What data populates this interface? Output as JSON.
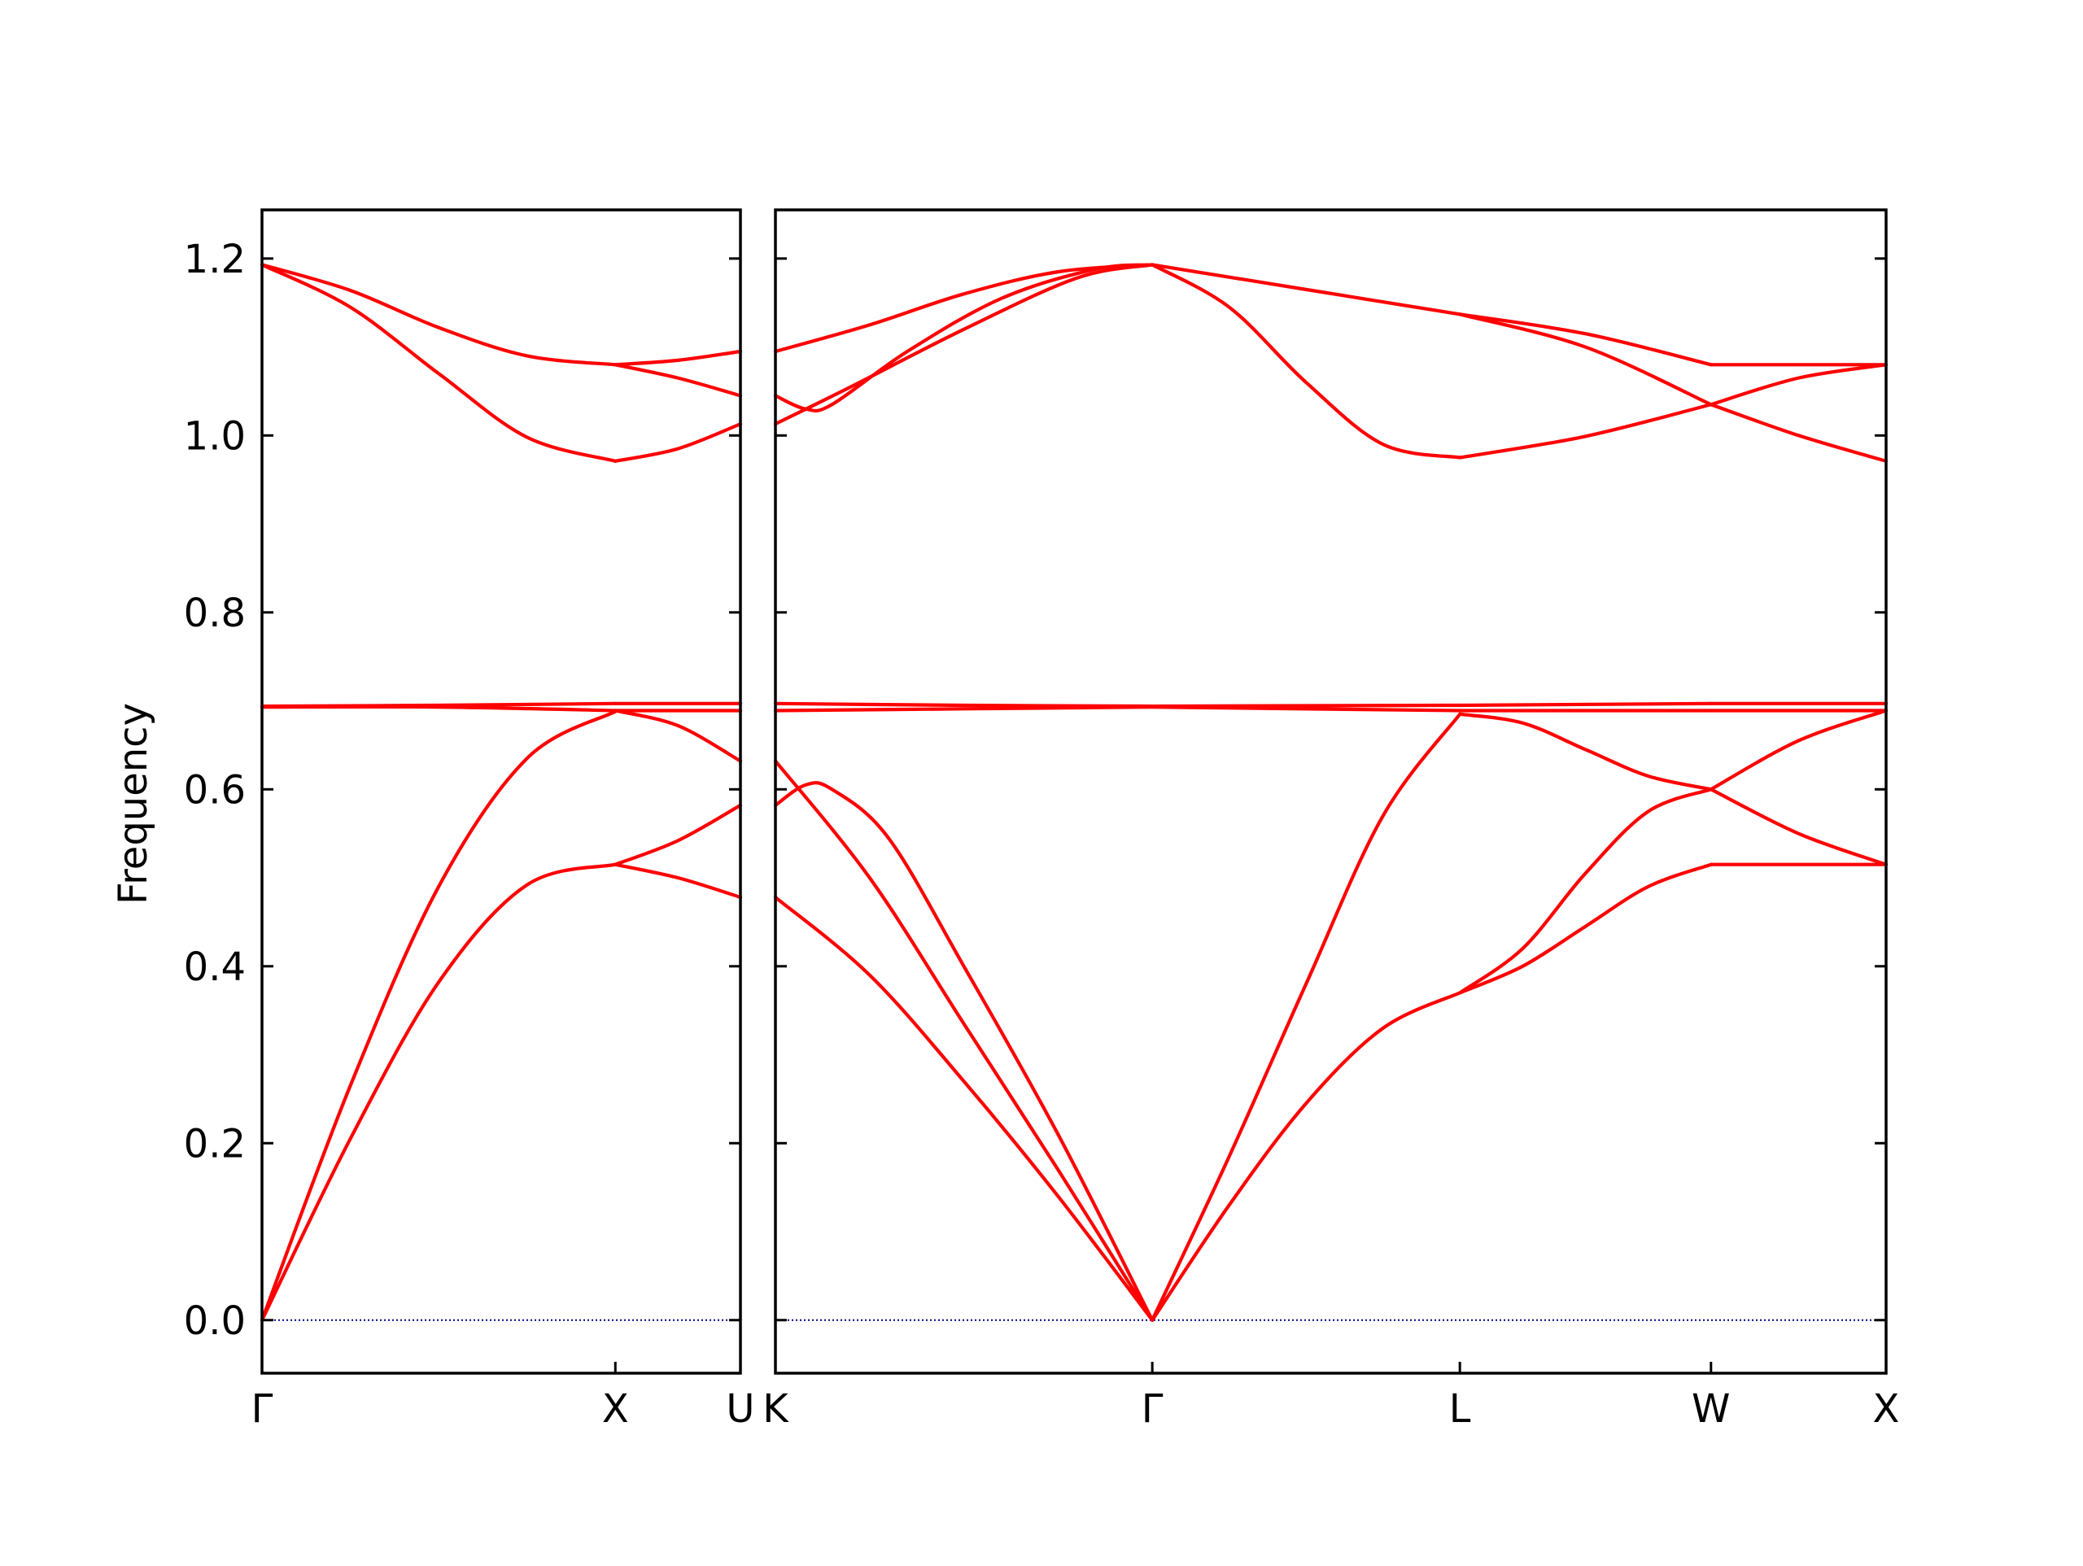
{
  "chart_data": {
    "type": "line",
    "ylabel": "Frequency",
    "xlabel": "",
    "ylim": [
      -0.06,
      1.255
    ],
    "y_ticks": [
      0.0,
      0.2,
      0.4,
      0.6,
      0.8,
      1.0,
      1.2
    ],
    "y_tick_labels": [
      "0.0",
      "0.2",
      "0.4",
      "0.6",
      "0.8",
      "1.0",
      "1.2"
    ],
    "line_color": "#ff0000",
    "zero_line_color": "#00008b",
    "grid": false,
    "panels": [
      {
        "x_range": [
          0,
          1.354
        ],
        "ticks": [
          {
            "x": 0,
            "label": "Γ"
          },
          {
            "x": 1.0,
            "label": "X"
          },
          {
            "x": 1.354,
            "label": "U"
          }
        ],
        "segments": [
          {
            "x_start": 0,
            "x_end": 1.0,
            "bands": [
              [
                [
                  0,
                  0
                ],
                [
                  0.25,
                  0.205
                ],
                [
                  0.5,
                  0.382
                ],
                [
                  0.75,
                  0.492
                ],
                [
                  1.0,
                  0.515
                ]
              ],
              [
                [
                  0,
                  0
                ],
                [
                  0.25,
                  0.265
                ],
                [
                  0.5,
                  0.49
                ],
                [
                  0.75,
                  0.635
                ],
                [
                  1.0,
                  0.688
                ]
              ],
              [
                [
                  0,
                  0.693
                ],
                [
                  0.5,
                  0.693
                ],
                [
                  1.0,
                  0.689
                ]
              ],
              [
                [
                  0,
                  0.694
                ],
                [
                  0.5,
                  0.695
                ],
                [
                  1.0,
                  0.697
                ]
              ],
              [
                [
                  0,
                  1.193
                ],
                [
                  0.25,
                  1.145
                ],
                [
                  0.5,
                  1.07
                ],
                [
                  0.75,
                  0.998
                ],
                [
                  1.0,
                  0.971
                ]
              ],
              [
                [
                  0,
                  1.193
                ],
                [
                  0.25,
                  1.164
                ],
                [
                  0.5,
                  1.122
                ],
                [
                  0.75,
                  1.09
                ],
                [
                  1.0,
                  1.08
                ]
              ]
            ]
          },
          {
            "x_start": 1.0,
            "x_end": 1.354,
            "bands": [
              [
                [
                  0,
                  0.515
                ],
                [
                  0.5,
                  0.5
                ],
                [
                  1.0,
                  0.478
                ]
              ],
              [
                [
                  0,
                  0.515
                ],
                [
                  0.5,
                  0.542
                ],
                [
                  1.0,
                  0.582
                ]
              ],
              [
                [
                  0,
                  0.689
                ],
                [
                  0.5,
                  0.672
                ],
                [
                  1.0,
                  0.632
                ]
              ],
              [
                [
                  0,
                  0.689
                ],
                [
                  1.0,
                  0.689
                ]
              ],
              [
                [
                  0,
                  0.697
                ],
                [
                  1.0,
                  0.697
                ]
              ],
              [
                [
                  0,
                  0.971
                ],
                [
                  0.5,
                  0.985
                ],
                [
                  1.0,
                  1.013
                ]
              ],
              [
                [
                  0,
                  1.08
                ],
                [
                  0.5,
                  1.065
                ],
                [
                  1.0,
                  1.045
                ]
              ],
              [
                [
                  0,
                  1.08
                ],
                [
                  0.5,
                  1.085
                ],
                [
                  1.0,
                  1.095
                ]
              ]
            ]
          }
        ]
      },
      {
        "x_range": [
          0,
          3.127
        ],
        "ticks": [
          {
            "x": 0,
            "label": "K"
          },
          {
            "x": 1.061,
            "label": "Γ"
          },
          {
            "x": 1.927,
            "label": "L"
          },
          {
            "x": 2.634,
            "label": "W"
          },
          {
            "x": 3.127,
            "label": "X"
          }
        ],
        "segments": [
          {
            "x_start": 0,
            "x_end": 1.061,
            "bands": [
              [
                [
                  0,
                  0.478
                ],
                [
                  0.25,
                  0.39
                ],
                [
                  0.5,
                  0.27
                ],
                [
                  0.75,
                  0.14
                ],
                [
                  1.0,
                  0
                ]
              ],
              [
                [
                  0,
                  0.632
                ],
                [
                  0.25,
                  0.5
                ],
                [
                  0.5,
                  0.335
                ],
                [
                  0.75,
                  0.17
                ],
                [
                  1.0,
                  0
                ]
              ],
              [
                [
                  0,
                  0.582
                ],
                [
                  0.08,
                  0.605
                ],
                [
                  0.15,
                  0.6
                ],
                [
                  0.3,
                  0.545
                ],
                [
                  0.5,
                  0.4
                ],
                [
                  0.75,
                  0.21
                ],
                [
                  1.0,
                  0
                ]
              ],
              [
                [
                  0,
                  0.689
                ],
                [
                  0.5,
                  0.691
                ],
                [
                  1.0,
                  0.693
                ]
              ],
              [
                [
                  0,
                  0.697
                ],
                [
                  0.5,
                  0.695
                ],
                [
                  1.0,
                  0.694
                ]
              ],
              [
                [
                  0,
                  1.013
                ],
                [
                  0.2,
                  1.055
                ],
                [
                  0.5,
                  1.12
                ],
                [
                  0.8,
                  1.178
                ],
                [
                  1.0,
                  1.193
                ]
              ],
              [
                [
                  0,
                  1.045
                ],
                [
                  0.08,
                  1.03
                ],
                [
                  0.15,
                  1.035
                ],
                [
                  0.35,
                  1.095
                ],
                [
                  0.6,
                  1.155
                ],
                [
                  0.85,
                  1.188
                ],
                [
                  1.0,
                  1.193
                ]
              ],
              [
                [
                  0,
                  1.095
                ],
                [
                  0.25,
                  1.125
                ],
                [
                  0.5,
                  1.16
                ],
                [
                  0.75,
                  1.185
                ],
                [
                  1.0,
                  1.193
                ]
              ]
            ]
          },
          {
            "x_start": 1.061,
            "x_end": 1.927,
            "bands": [
              [
                [
                  0,
                  0
                ],
                [
                  0.25,
                  0.13
                ],
                [
                  0.5,
                  0.245
                ],
                [
                  0.75,
                  0.33
                ],
                [
                  1.0,
                  0.37
                ]
              ],
              [
                [
                  0,
                  0
                ],
                [
                  0.25,
                  0.185
                ],
                [
                  0.5,
                  0.38
                ],
                [
                  0.75,
                  0.57
                ],
                [
                  1.0,
                  0.685
                ]
              ],
              [
                [
                  0,
                  0.693
                ],
                [
                  1.0,
                  0.689
                ]
              ],
              [
                [
                  0,
                  0.694
                ],
                [
                  1.0,
                  0.695
                ]
              ],
              [
                [
                  0,
                  1.193
                ],
                [
                  0.25,
                  1.145
                ],
                [
                  0.5,
                  1.06
                ],
                [
                  0.75,
                  0.99
                ],
                [
                  1.0,
                  0.975
                ]
              ],
              [
                [
                  0,
                  1.193
                ],
                [
                  0.5,
                  1.165
                ],
                [
                  1.0,
                  1.137
                ]
              ]
            ]
          },
          {
            "x_start": 1.927,
            "x_end": 2.634,
            "bands": [
              [
                [
                  0,
                  0.37
                ],
                [
                  0.25,
                  0.4
                ],
                [
                  0.5,
                  0.445
                ],
                [
                  0.75,
                  0.49
                ],
                [
                  1.0,
                  0.515
                ]
              ],
              [
                [
                  0,
                  0.37
                ],
                [
                  0.25,
                  0.42
                ],
                [
                  0.5,
                  0.505
                ],
                [
                  0.75,
                  0.575
                ],
                [
                  1.0,
                  0.6
                ]
              ],
              [
                [
                  0,
                  0.685
                ],
                [
                  0.25,
                  0.675
                ],
                [
                  0.5,
                  0.645
                ],
                [
                  0.75,
                  0.615
                ],
                [
                  1.0,
                  0.6
                ]
              ],
              [
                [
                  0,
                  0.689
                ],
                [
                  1.0,
                  0.689
                ]
              ],
              [
                [
                  0,
                  0.695
                ],
                [
                  1.0,
                  0.697
                ]
              ],
              [
                [
                  0,
                  0.975
                ],
                [
                  0.5,
                  0.999
                ],
                [
                  1.0,
                  1.035
                ]
              ],
              [
                [
                  0,
                  1.137
                ],
                [
                  0.5,
                  1.1
                ],
                [
                  1.0,
                  1.035
                ]
              ],
              [
                [
                  0,
                  1.137
                ],
                [
                  0.5,
                  1.115
                ],
                [
                  1.0,
                  1.08
                ]
              ]
            ]
          },
          {
            "x_start": 2.634,
            "x_end": 3.127,
            "bands": [
              [
                [
                  0,
                  0.515
                ],
                [
                  1.0,
                  0.515
                ]
              ],
              [
                [
                  0,
                  0.6
                ],
                [
                  0.5,
                  0.55
                ],
                [
                  1.0,
                  0.515
                ]
              ],
              [
                [
                  0,
                  0.6
                ],
                [
                  0.5,
                  0.655
                ],
                [
                  1.0,
                  0.689
                ]
              ],
              [
                [
                  0,
                  0.689
                ],
                [
                  1.0,
                  0.689
                ]
              ],
              [
                [
                  0,
                  0.697
                ],
                [
                  1.0,
                  0.697
                ]
              ],
              [
                [
                  0,
                  1.035
                ],
                [
                  0.5,
                  1.0
                ],
                [
                  1.0,
                  0.971
                ]
              ],
              [
                [
                  0,
                  1.035
                ],
                [
                  0.5,
                  1.065
                ],
                [
                  1.0,
                  1.08
                ]
              ],
              [
                [
                  0,
                  1.08
                ],
                [
                  1.0,
                  1.08
                ]
              ]
            ]
          }
        ]
      }
    ]
  }
}
